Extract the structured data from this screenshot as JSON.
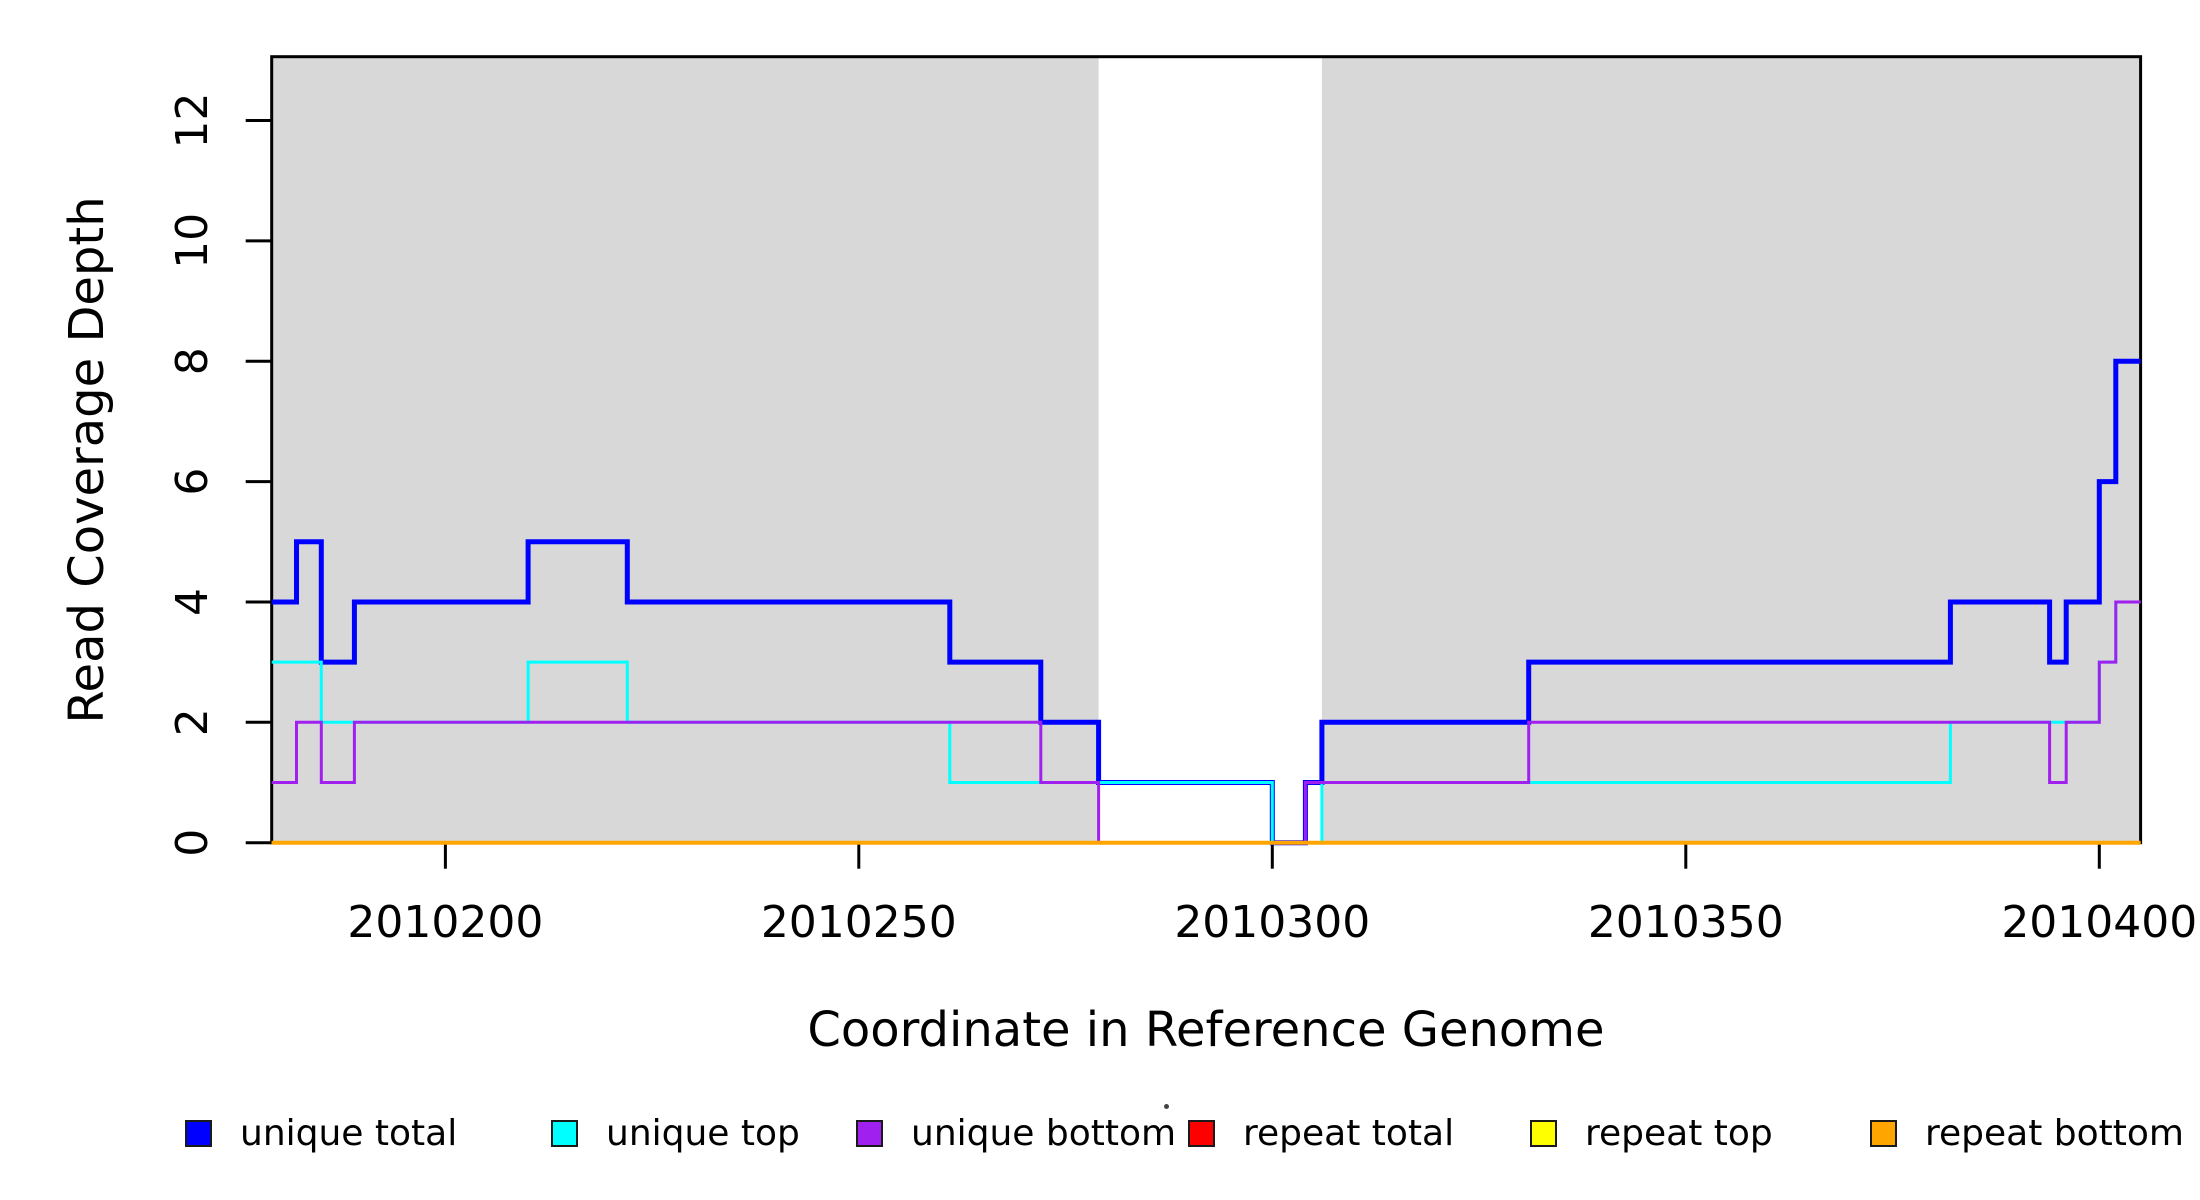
{
  "chart_data": {
    "type": "line",
    "subtype": "step",
    "title": "",
    "xlabel": "Coordinate in Reference Genome",
    "ylabel": "Read Coverage Depth",
    "x_range": [
      2010179,
      2010405
    ],
    "y_range": [
      0,
      13.06
    ],
    "x_ticks": [
      2010200,
      2010250,
      2010300,
      2010350,
      2010400
    ],
    "y_ticks": [
      0,
      2,
      4,
      6,
      8,
      10,
      12
    ],
    "grid": false,
    "legend_position": "bottom",
    "background_bands": {
      "color": "#d8d8d8",
      "regions": [
        [
          2010179,
          2010279
        ],
        [
          2010306,
          2010405
        ]
      ]
    },
    "axis_color": "#000000",
    "series": [
      {
        "name": "unique total",
        "color": "#0000ff",
        "line_width": 5,
        "steps": [
          [
            2010179,
            4
          ],
          [
            2010182,
            5
          ],
          [
            2010185,
            3
          ],
          [
            2010189,
            4
          ],
          [
            2010210,
            5
          ],
          [
            2010222,
            4
          ],
          [
            2010261,
            3
          ],
          [
            2010272,
            2
          ],
          [
            2010279,
            1
          ],
          [
            2010300,
            0
          ],
          [
            2010304,
            1
          ],
          [
            2010306,
            2
          ],
          [
            2010331,
            3
          ],
          [
            2010382,
            4
          ],
          [
            2010394,
            3
          ],
          [
            2010396,
            4
          ],
          [
            2010400,
            6
          ],
          [
            2010402,
            8
          ]
        ]
      },
      {
        "name": "unique top",
        "color": "#00ffff",
        "line_width": 3,
        "steps": [
          [
            2010179,
            3
          ],
          [
            2010185,
            2
          ],
          [
            2010210,
            3
          ],
          [
            2010222,
            2
          ],
          [
            2010261,
            1
          ],
          [
            2010300,
            0
          ],
          [
            2010306,
            1
          ],
          [
            2010382,
            2
          ],
          [
            2010400,
            3
          ],
          [
            2010402,
            4
          ]
        ]
      },
      {
        "name": "unique bottom",
        "color": "#a020f0",
        "line_width": 3,
        "steps": [
          [
            2010179,
            1
          ],
          [
            2010182,
            2
          ],
          [
            2010185,
            1
          ],
          [
            2010189,
            2
          ],
          [
            2010272,
            1
          ],
          [
            2010279,
            0
          ],
          [
            2010304,
            1
          ],
          [
            2010331,
            2
          ],
          [
            2010394,
            1
          ],
          [
            2010396,
            2
          ],
          [
            2010400,
            3
          ],
          [
            2010402,
            4
          ]
        ]
      },
      {
        "name": "repeat total",
        "color": "#ff0000",
        "line_width": 3,
        "steps": [
          [
            2010179,
            0
          ]
        ]
      },
      {
        "name": "repeat top",
        "color": "#ffff00",
        "line_width": 3,
        "steps": [
          [
            2010179,
            0
          ]
        ]
      },
      {
        "name": "repeat bottom",
        "color": "#ffa500",
        "line_width": 4,
        "steps": [
          [
            2010179,
            0
          ]
        ]
      }
    ]
  }
}
